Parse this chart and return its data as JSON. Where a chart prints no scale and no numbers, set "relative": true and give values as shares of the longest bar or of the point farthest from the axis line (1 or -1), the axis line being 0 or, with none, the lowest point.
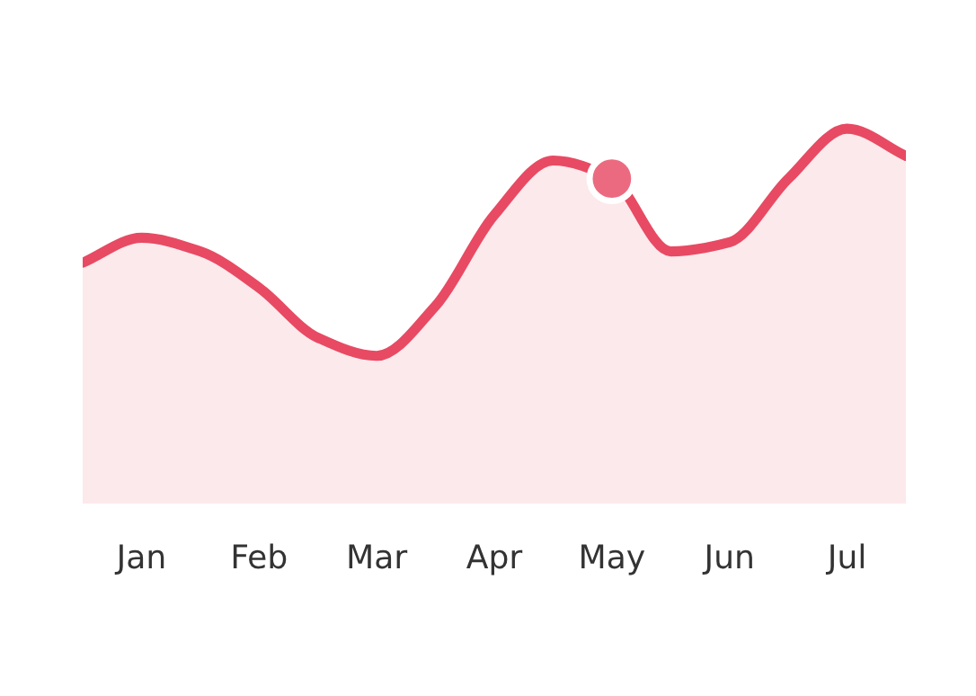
{
  "chart_data": {
    "type": "area",
    "relative": true,
    "categories": [
      null,
      "Jan",
      null,
      "Feb",
      null,
      "Mar",
      null,
      "Apr",
      null,
      "May",
      null,
      "Jun",
      null,
      "Jul",
      null
    ],
    "grid": false,
    "legend": false,
    "series": [
      {
        "color": "#e84a63",
        "values": [
          0.41,
          0.52,
          0.46,
          0.3,
          0.08,
          0,
          0.22,
          0.62,
          0.86,
          0.78,
          0.46,
          0.5,
          0.78,
          1,
          0.88
        ]
      },
      {
        "type": "scatter",
        "color": "#ec6a80",
        "marker": "circle",
        "values": [
          null,
          null,
          null,
          null,
          null,
          null,
          null,
          null,
          null,
          0.78,
          null,
          null,
          null,
          null,
          null
        ]
      }
    ]
  }
}
